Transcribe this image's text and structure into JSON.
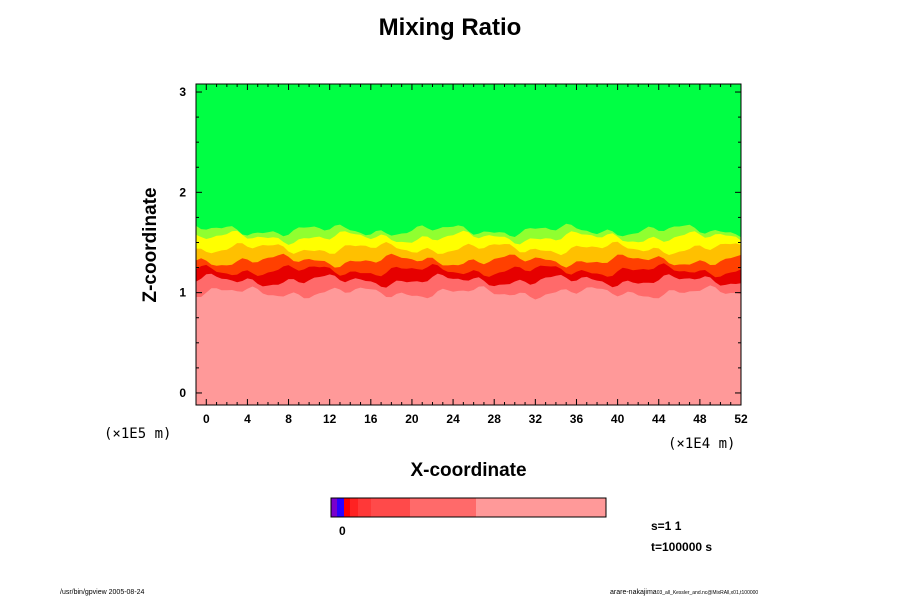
{
  "chart_data": {
    "type": "heatmap",
    "title": "Mixing Ratio",
    "xlabel": "X-coordinate",
    "ylabel": "Z-coordinate",
    "x_scale_label": "(×1E4 m)",
    "y_scale_label": "(×1E5 m)",
    "xlim": [
      -1,
      52
    ],
    "ylim": [
      -0.12,
      3.08
    ],
    "xticks": [
      0,
      4,
      8,
      12,
      16,
      20,
      24,
      28,
      32,
      36,
      40,
      44,
      48,
      52
    ],
    "yticks": [
      0,
      1,
      2,
      3
    ],
    "field_bands": [
      {
        "z_range": [
          -0.12,
          1.0
        ],
        "color": "#ff9999"
      },
      {
        "z_range": [
          1.0,
          1.12
        ],
        "color": "#ff6a6a"
      },
      {
        "z_range": [
          1.12,
          1.22
        ],
        "color": "#e60000"
      },
      {
        "z_range": [
          1.22,
          1.32
        ],
        "color": "#ff4000"
      },
      {
        "z_range": [
          1.32,
          1.44
        ],
        "color": "#ffc000"
      },
      {
        "z_range": [
          1.44,
          1.55
        ],
        "color": "#ffff00"
      },
      {
        "z_range": [
          1.55,
          1.62
        ],
        "color": "#90ff30"
      },
      {
        "z_range": [
          1.62,
          3.08
        ],
        "color": "#00ff44"
      }
    ],
    "colorbar": {
      "label": "0",
      "segments": [
        {
          "color": "#7a00cc",
          "width": 6
        },
        {
          "color": "#2a00ff",
          "width": 7
        },
        {
          "color": "#ff0000",
          "width": 6
        },
        {
          "color": "#ff2222",
          "width": 8
        },
        {
          "color": "#ff3838",
          "width": 13
        },
        {
          "color": "#ff4a4a",
          "width": 39
        },
        {
          "color": "#ff6a6a",
          "width": 66
        },
        {
          "color": "#ff9999",
          "width": 130
        }
      ]
    },
    "grid": false
  },
  "annotations": {
    "s_info": "s=1 1",
    "t_info": "t=100000 s"
  },
  "footer": {
    "left": "/usr/bin/gpview 2005-08-24",
    "right_main": "arare-nakajima",
    "right_small": "03_all_Kessler_and.nc@MixRAll,x01,t100000"
  }
}
